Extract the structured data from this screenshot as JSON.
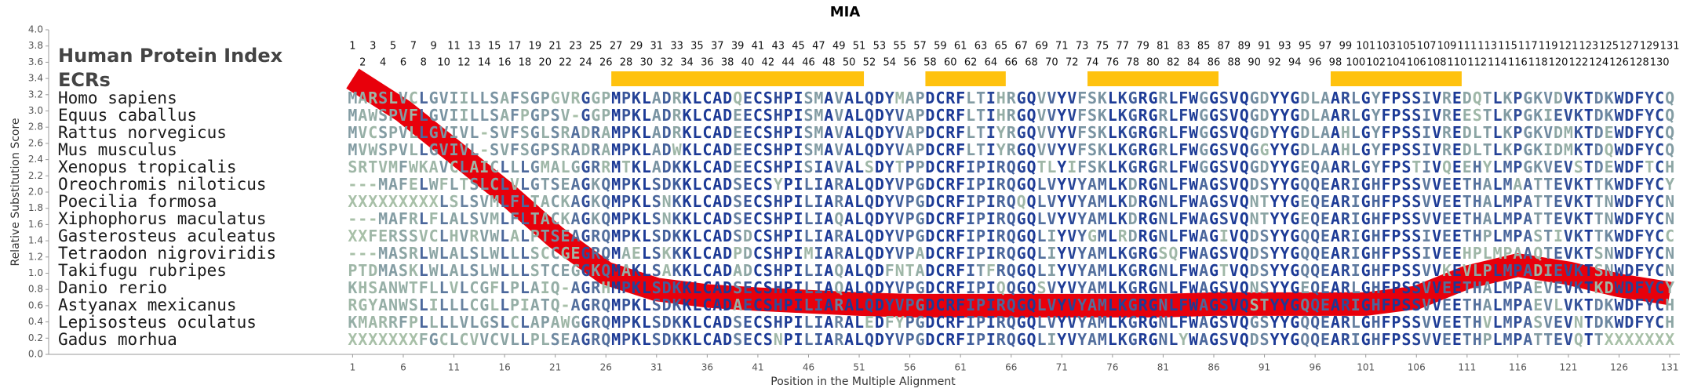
{
  "chart_data": {
    "type": "line",
    "title": "MIA",
    "y_label": "Relative Substitution Score",
    "x_label": "Position in the Multiple Alignment",
    "index_label": "Human Protein Index",
    "ecr_label": "ECRs",
    "color": "#e8000b",
    "ecr_color": "#ffc20e",
    "xlim": [
      -29,
      132
    ],
    "ylim": [
      0,
      4
    ],
    "xticks": [
      1,
      6,
      11,
      16,
      21,
      26,
      31,
      36,
      41,
      46,
      51,
      56,
      61,
      66,
      71,
      76,
      81,
      86,
      91,
      96,
      101,
      106,
      111,
      116,
      121,
      126,
      131
    ],
    "yticks": [
      {
        "value": 0,
        "label": "0.0"
      },
      0.2,
      0.4,
      0.6,
      0.8,
      {
        "value": 1,
        "label": "1.0"
      },
      1.2,
      1.4,
      1.6,
      1.8,
      {
        "value": 2,
        "label": "2.0"
      },
      2.2,
      2.4,
      2.6,
      2.8,
      {
        "value": 3,
        "label": "3.0"
      },
      3.2,
      3.4,
      3.6,
      3.8,
      {
        "value": 4,
        "label": "4.0"
      }
    ],
    "x": [
      1,
      6,
      11,
      16,
      21,
      26,
      31,
      36,
      41,
      46,
      51,
      56,
      61,
      66,
      71,
      76,
      81,
      86,
      91,
      96,
      101,
      106,
      111,
      116,
      121,
      126,
      131
    ],
    "values": [
      3.4,
      3.0,
      2.5,
      2.0,
      1.45,
      1.0,
      0.8,
      0.72,
      0.68,
      0.65,
      0.62,
      0.6,
      0.6,
      0.6,
      0.6,
      0.6,
      0.6,
      0.62,
      0.62,
      0.62,
      0.62,
      0.7,
      0.95,
      1.1,
      1.0,
      0.85,
      0.75
    ],
    "ecrs": [
      {
        "start": 27,
        "end": 51
      },
      {
        "start": 58,
        "end": 65
      },
      {
        "start": 74,
        "end": 86
      },
      {
        "start": 98,
        "end": 110
      }
    ],
    "human_index": [
      1,
      2,
      3,
      4,
      5,
      6,
      7,
      8,
      9,
      10,
      11,
      12,
      13,
      14,
      15,
      16,
      17,
      18,
      19,
      20,
      21,
      22,
      23,
      24,
      25,
      26,
      27,
      28,
      29,
      30,
      31,
      32,
      33,
      34,
      35,
      36,
      37,
      38,
      39,
      40,
      41,
      42,
      43,
      44,
      45,
      46,
      47,
      48,
      49,
      50,
      51,
      52,
      53,
      54,
      55,
      56,
      57,
      58,
      59,
      60,
      61,
      62,
      63,
      64,
      65,
      66,
      67,
      68,
      69,
      70,
      71,
      72,
      73,
      74,
      75,
      76,
      77,
      78,
      79,
      80,
      81,
      82,
      83,
      84,
      85,
      86,
      87,
      88,
      89,
      90,
      91,
      92,
      93,
      94,
      95,
      96,
      97,
      98,
      99,
      100,
      101,
      102,
      103,
      104,
      105,
      106,
      107,
      108,
      109,
      110,
      111,
      112,
      113,
      114,
      115,
      116,
      117,
      118,
      119,
      120,
      121,
      122,
      123,
      124,
      125,
      126,
      127,
      128,
      129,
      130,
      131
    ],
    "species": [
      {
        "name": "Homo sapiens",
        "sequence": "MARSLVCLGVIILLSAFSGPGVRGGPMPKLADRKLCADQECSHPISMAVALQDYMAPDCRFLTIHRGQVVYVFSKLKGRGRLFWGGSVQGDYYGDLAARLGYFPSSIVREDQTLKPGKVDVKTDKWDFYCQ"
      },
      {
        "name": "Equus caballus",
        "sequence": "MAWSPVFLGVIILLSAFPGPSV-GGPMPKLADRKLCADEECSHPISMAVALQDYVAPDCRFLTIHRGQVVYVFSKLKGRGRLFWGGSVQGDYYGDLAARLGYFPSSIVREESTLKPGKIEVKTDKWDFYCQ"
      },
      {
        "name": "Rattus norvegicus",
        "sequence": "MVCSPVLLGVIVL-SVFSGLSRADRAMPKLADRKLCADEECSHPISMAVALQDYVAPDCRFLTIYRGQVVYVFSKLKGRGRLFWGGSVQGDYYGDLAAHLGYFPSSIVREDLTLKPGKVDMKTDEWDFYCQ"
      },
      {
        "name": "Mus musculus",
        "sequence": "MVWSPVLLGVIVL-SVFSGPSRADRAMPKLADWKLCADEECSHPISMAVALQDYVAPDCRFLTIYRGQVVYVFSKLKGRGRLFWGGSVQGGYYGDLAAHLGYFPSSIVREDLTLKPGKIDMKTDQWDFYCQ"
      },
      {
        "name": "Xenopus tropicalis",
        "sequence": "SRTVMFWKAVCLAICLLLGMALGGRRMTKLADKKLCADEECSHPISIAVALSDYTPPDCRFIPIRQGQTLYIFSKLKGRGRLFWGGSVQGDYYGEQAARLGYFPSTIVQEEHYLMPGKVEVSTDEWDFTCH"
      },
      {
        "name": "Oreochromis niloticus",
        "sequence": "---MAFELWFLTSLCLVLGTSEAGKQMPKLSDKKLCADSECSYPILIARALQDYVPGDCRFIPIRQGQLVYVYAMLKDRGNLFWAGSVQDSYYGQQEARIGHFPSSVVEETHALMAATTEVKTTKWDFYCY"
      },
      {
        "name": "Poecilia formosa",
        "sequence": "XXXXXXXXXLSLSVMLFLTACKAGKQMPKLSNKKLCADSECSHPILIARALQDYVPGDCRFIPIRQQQLVYVYAMLKDRGNLFWAGSVQNTYYGEQEARIGHFPSSVVEETHALMPATTEVKTTNWDFYCN"
      },
      {
        "name": "Xiphophorus maculatus",
        "sequence": "---MAFRLFLALSVMLFLTACKAGKQMPKLSNKKLCADSECSHPILIAQALQDYVPGDCRFIPIRQGQLVYVYAMLKDRGNLFWAGSVQNTYYGEQEARIGHFPSSVVEETHALMPATTEVKTTNWDFYCN"
      },
      {
        "name": "Gasterosteus aculeatus",
        "sequence": "XXFERSSVCLHVRVWLALPTSEAGRQMPKLSDKKLCADSDCSHPILIARALQDYVPGDCRFIPIRQGQLIYVYGMLRDRGNLFWAGIVQDSYYGQQEARIGHFPSSIVEETHPLMPASTIVKTTKWDFYCC"
      },
      {
        "name": "Tetraodon nigroviridis",
        "sequence": "---MASRLWLALSLWLLLSCCGEGRQMAELSKKKLCADPDCSHPIMIARALQDYVPADCRFIPIRQGQLIYVYAMLKGRGSQFWAGSVQDSYYGQQEARIGHFPSSIVEEHPLMPAAQTEVKTSNWDFYCN"
      },
      {
        "name": "Takifugu rubripes",
        "sequence": "PTDMASKLWLALSLWLLLSTCEGGKQMAKLSAKKLCADADCSHPILIAQALQDFNTADCRFITFRQGQLIYVYAMLKGRGNLFWAGTVQDSYYGQQEARIGHFPSSVVKEVLPLMPADIEVKTSNWDFYCN"
      },
      {
        "name": "Danio rerio",
        "sequence": "KHSANWTFLLVLCGFLPLAIQ-AGRHMPKLSDKKLCADSECSHPILIAQALQDYVPGDCRFIPIQQGQSVYVYAMLKGRGNLFWAGSVQNSYYGEQEARLGHFPSSVVEETHALMPAEVEVKTKDWDFYCY"
      },
      {
        "name": "Astyanax mexicanus",
        "sequence": "RGYANWSLILLLCGLLPIATQ-AGRQMPKLSDKKLCADAECSHPILIARALQDYVPGDCRFIPIRQGQLVYVYAMLKGRGNLFWAGSVQSTYYGQQEARIGHFPSSVVEETHALMPAEVLVKTDKWDFYCH"
      },
      {
        "name": "Lepisosteus oculatus",
        "sequence": "KMARRFPLLLLVLGSLCLAPAWGGRQMPKLSDKKLCADSECSHPILIARALEDFYPGDCRFIPIRQGQLVYVYAMLKGRGNLFWAGSVQGSYYGQQEARLGHFPSSVVEETHVLMPASVEVNTDKWDFYCH"
      },
      {
        "name": "Gadus morhua",
        "sequence": "XXXXXXXFGCLCVVCVLLPLSEAGRQMPKLSDKKLCADSECSNPILIARALQDYVPGDCRFIPIRQGQLIYVYAMLKGRGNLYWAGSVQDSYYGQQEARIGHFPSSVVEETHPLMPATTEVQTTXXXXXXX"
      }
    ]
  }
}
